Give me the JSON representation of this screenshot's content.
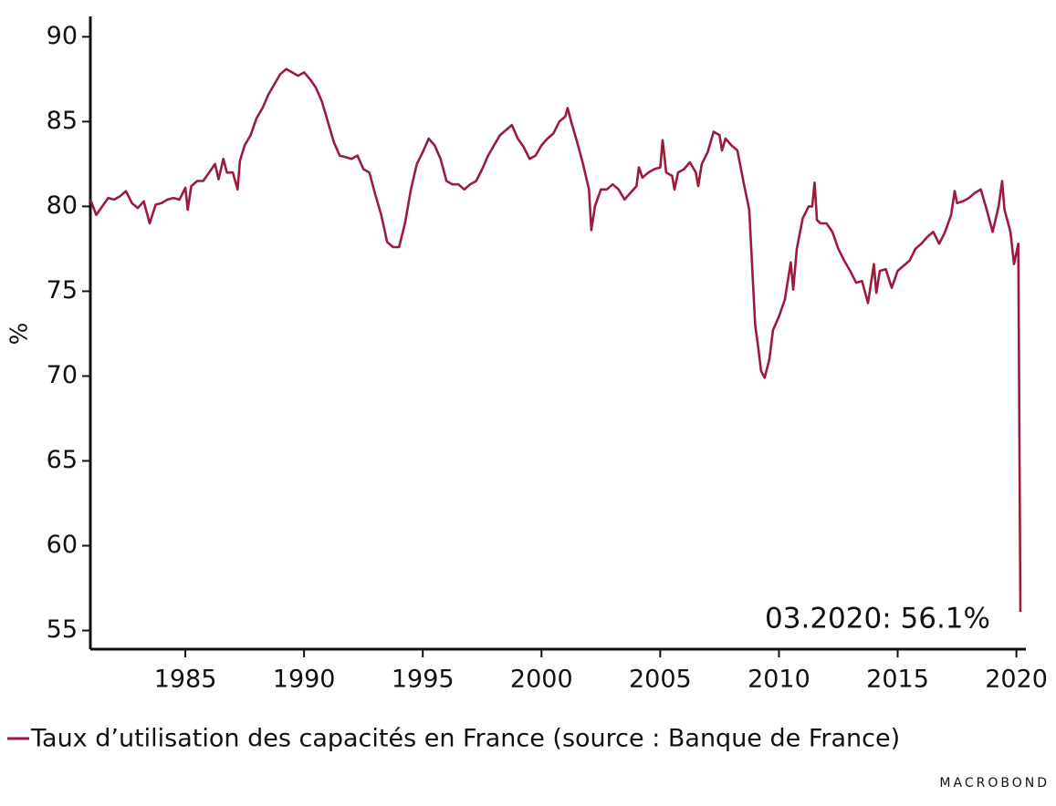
{
  "chart_data": {
    "type": "line",
    "y_label": "%",
    "annotation": "03.2020: 56.1%",
    "logo": "MACROBOND",
    "xlim": [
      1981.0,
      2020.4
    ],
    "ylim": [
      53.9,
      91.2
    ],
    "xticks": [
      1985,
      1990,
      1995,
      2000,
      2005,
      2010,
      2015,
      2020
    ],
    "yticks": [
      55,
      60,
      65,
      70,
      75,
      80,
      85,
      90
    ],
    "x": [
      1981.0,
      1981.25,
      1981.5,
      1981.75,
      1982.0,
      1982.25,
      1982.5,
      1982.75,
      1983.0,
      1983.25,
      1983.5,
      1983.75,
      1984.0,
      1984.25,
      1984.5,
      1984.75,
      1985.0,
      1985.1,
      1985.25,
      1985.5,
      1985.75,
      1986.0,
      1986.25,
      1986.4,
      1986.6,
      1986.75,
      1987.0,
      1987.2,
      1987.3,
      1987.5,
      1987.75,
      1988.0,
      1988.25,
      1988.5,
      1988.75,
      1989.0,
      1989.25,
      1989.5,
      1989.75,
      1990.0,
      1990.25,
      1990.5,
      1990.75,
      1991.0,
      1991.25,
      1991.5,
      1991.75,
      1992.0,
      1992.25,
      1992.5,
      1992.75,
      1993.0,
      1993.25,
      1993.5,
      1993.75,
      1994.0,
      1994.25,
      1994.5,
      1994.75,
      1995.0,
      1995.25,
      1995.5,
      1995.75,
      1996.0,
      1996.25,
      1996.5,
      1996.75,
      1997.0,
      1997.25,
      1997.5,
      1997.75,
      1998.0,
      1998.25,
      1998.5,
      1998.75,
      1999.0,
      1999.25,
      1999.5,
      1999.75,
      2000.0,
      2000.25,
      2000.5,
      2000.75,
      2001.0,
      2001.1,
      2001.25,
      2001.5,
      2001.75,
      2002.0,
      2002.1,
      2002.25,
      2002.5,
      2002.75,
      2003.0,
      2003.25,
      2003.5,
      2003.75,
      2004.0,
      2004.1,
      2004.25,
      2004.5,
      2004.75,
      2005.0,
      2005.1,
      2005.25,
      2005.5,
      2005.6,
      2005.75,
      2006.0,
      2006.25,
      2006.5,
      2006.6,
      2006.75,
      2007.0,
      2007.25,
      2007.5,
      2007.6,
      2007.75,
      2008.0,
      2008.25,
      2008.5,
      2008.75,
      2009.0,
      2009.1,
      2009.25,
      2009.4,
      2009.6,
      2009.75,
      2010.0,
      2010.25,
      2010.5,
      2010.6,
      2010.75,
      2011.0,
      2011.25,
      2011.4,
      2011.5,
      2011.6,
      2011.75,
      2012.0,
      2012.25,
      2012.5,
      2012.75,
      2013.0,
      2013.25,
      2013.5,
      2013.75,
      2014.0,
      2014.1,
      2014.25,
      2014.5,
      2014.75,
      2015.0,
      2015.25,
      2015.5,
      2015.75,
      2016.0,
      2016.25,
      2016.5,
      2016.75,
      2017.0,
      2017.25,
      2017.4,
      2017.5,
      2017.75,
      2018.0,
      2018.25,
      2018.5,
      2018.75,
      2019.0,
      2019.25,
      2019.4,
      2019.5,
      2019.75,
      2019.9,
      2020.08,
      2020.17
    ],
    "series": [
      {
        "name": "Taux d’utilisation des capacités en France (source : Banque de France)",
        "color": "#9b1b3a",
        "values": [
          80.4,
          79.5,
          80.0,
          80.5,
          80.4,
          80.6,
          80.9,
          80.2,
          79.9,
          80.3,
          79.0,
          80.1,
          80.2,
          80.4,
          80.5,
          80.4,
          81.1,
          79.8,
          81.2,
          81.5,
          81.5,
          82.0,
          82.5,
          81.6,
          82.8,
          82.0,
          82.0,
          81.0,
          82.7,
          83.6,
          84.2,
          85.2,
          85.8,
          86.6,
          87.2,
          87.8,
          88.1,
          87.9,
          87.7,
          87.9,
          87.5,
          87.0,
          86.2,
          85.0,
          83.8,
          83.0,
          82.9,
          82.8,
          83.0,
          82.2,
          82.0,
          80.7,
          79.5,
          77.9,
          77.6,
          77.6,
          79.0,
          81.0,
          82.5,
          83.2,
          84.0,
          83.6,
          82.8,
          81.5,
          81.3,
          81.3,
          81.0,
          81.3,
          81.5,
          82.2,
          83.0,
          83.6,
          84.2,
          84.5,
          84.8,
          84.0,
          83.5,
          82.8,
          83.0,
          83.6,
          84.0,
          84.3,
          85.0,
          85.3,
          85.8,
          85.0,
          83.8,
          82.5,
          81.0,
          78.6,
          80.0,
          81.0,
          81.0,
          81.3,
          81.0,
          80.4,
          80.8,
          81.2,
          82.3,
          81.7,
          82.0,
          82.2,
          82.3,
          83.9,
          82.0,
          81.8,
          81.0,
          82.0,
          82.2,
          82.6,
          82.0,
          81.2,
          82.5,
          83.2,
          84.4,
          84.2,
          83.3,
          84.0,
          83.6,
          83.3,
          81.5,
          79.8,
          73.0,
          72.0,
          70.3,
          69.9,
          71.0,
          72.7,
          73.5,
          74.5,
          76.7,
          75.1,
          77.5,
          79.3,
          80.0,
          80.0,
          81.4,
          79.2,
          79.0,
          79.0,
          78.5,
          77.5,
          76.8,
          76.2,
          75.5,
          75.6,
          74.3,
          76.6,
          74.9,
          76.2,
          76.3,
          75.2,
          76.2,
          76.5,
          76.8,
          77.5,
          77.8,
          78.2,
          78.5,
          77.8,
          78.5,
          79.5,
          80.9,
          80.2,
          80.3,
          80.5,
          80.8,
          81.0,
          79.8,
          78.5,
          80.0,
          81.5,
          79.8,
          78.5,
          76.6,
          77.8,
          56.1
        ]
      }
    ]
  }
}
